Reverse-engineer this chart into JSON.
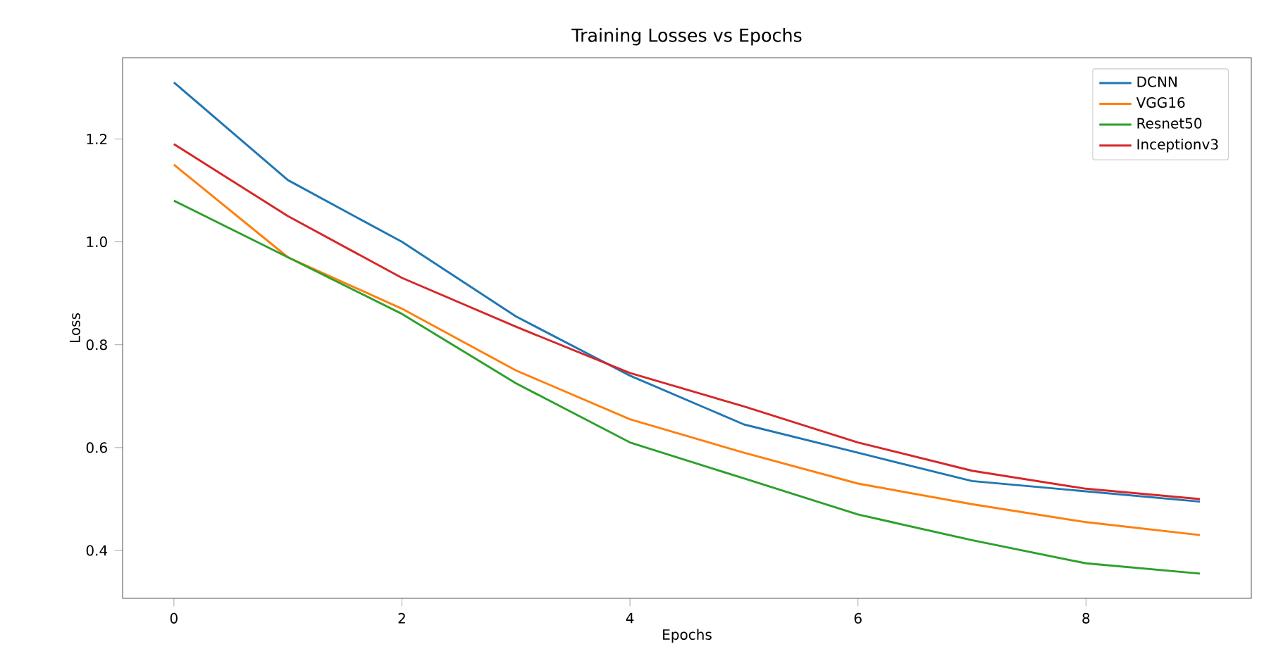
{
  "chart_data": {
    "type": "line",
    "title": "Training Losses vs Epochs",
    "xlabel": "Epochs",
    "ylabel": "Loss",
    "x": [
      0,
      1,
      2,
      3,
      4,
      5,
      6,
      7,
      8,
      9
    ],
    "series": [
      {
        "name": "DCNN",
        "color": "#1f77b4",
        "values": [
          1.31,
          1.12,
          1.0,
          0.855,
          0.74,
          0.645,
          0.59,
          0.535,
          0.515,
          0.495
        ]
      },
      {
        "name": "VGG16",
        "color": "#ff7f0e",
        "values": [
          1.15,
          0.97,
          0.87,
          0.75,
          0.655,
          0.59,
          0.53,
          0.49,
          0.455,
          0.43
        ]
      },
      {
        "name": "Resnet50",
        "color": "#2ca02c",
        "values": [
          1.08,
          0.97,
          0.86,
          0.725,
          0.61,
          0.54,
          0.47,
          0.42,
          0.375,
          0.355
        ]
      },
      {
        "name": "Inceptionv3",
        "color": "#d62728",
        "values": [
          1.19,
          1.05,
          0.93,
          0.835,
          0.745,
          0.68,
          0.61,
          0.555,
          0.52,
          0.5
        ]
      }
    ],
    "xlim": [
      -0.45,
      9.45
    ],
    "ylim": [
      0.307,
      1.358
    ],
    "xticks": [
      0,
      2,
      4,
      6,
      8
    ],
    "yticks": [
      {
        "value": 0.4,
        "label": "0.4"
      },
      {
        "value": 0.6,
        "label": "0.6"
      },
      {
        "value": 0.8,
        "label": "0.8"
      },
      {
        "value": 1.0,
        "label": "1.0"
      },
      {
        "value": 1.2,
        "label": "1.2"
      }
    ],
    "grid": false,
    "legend": "top right"
  }
}
